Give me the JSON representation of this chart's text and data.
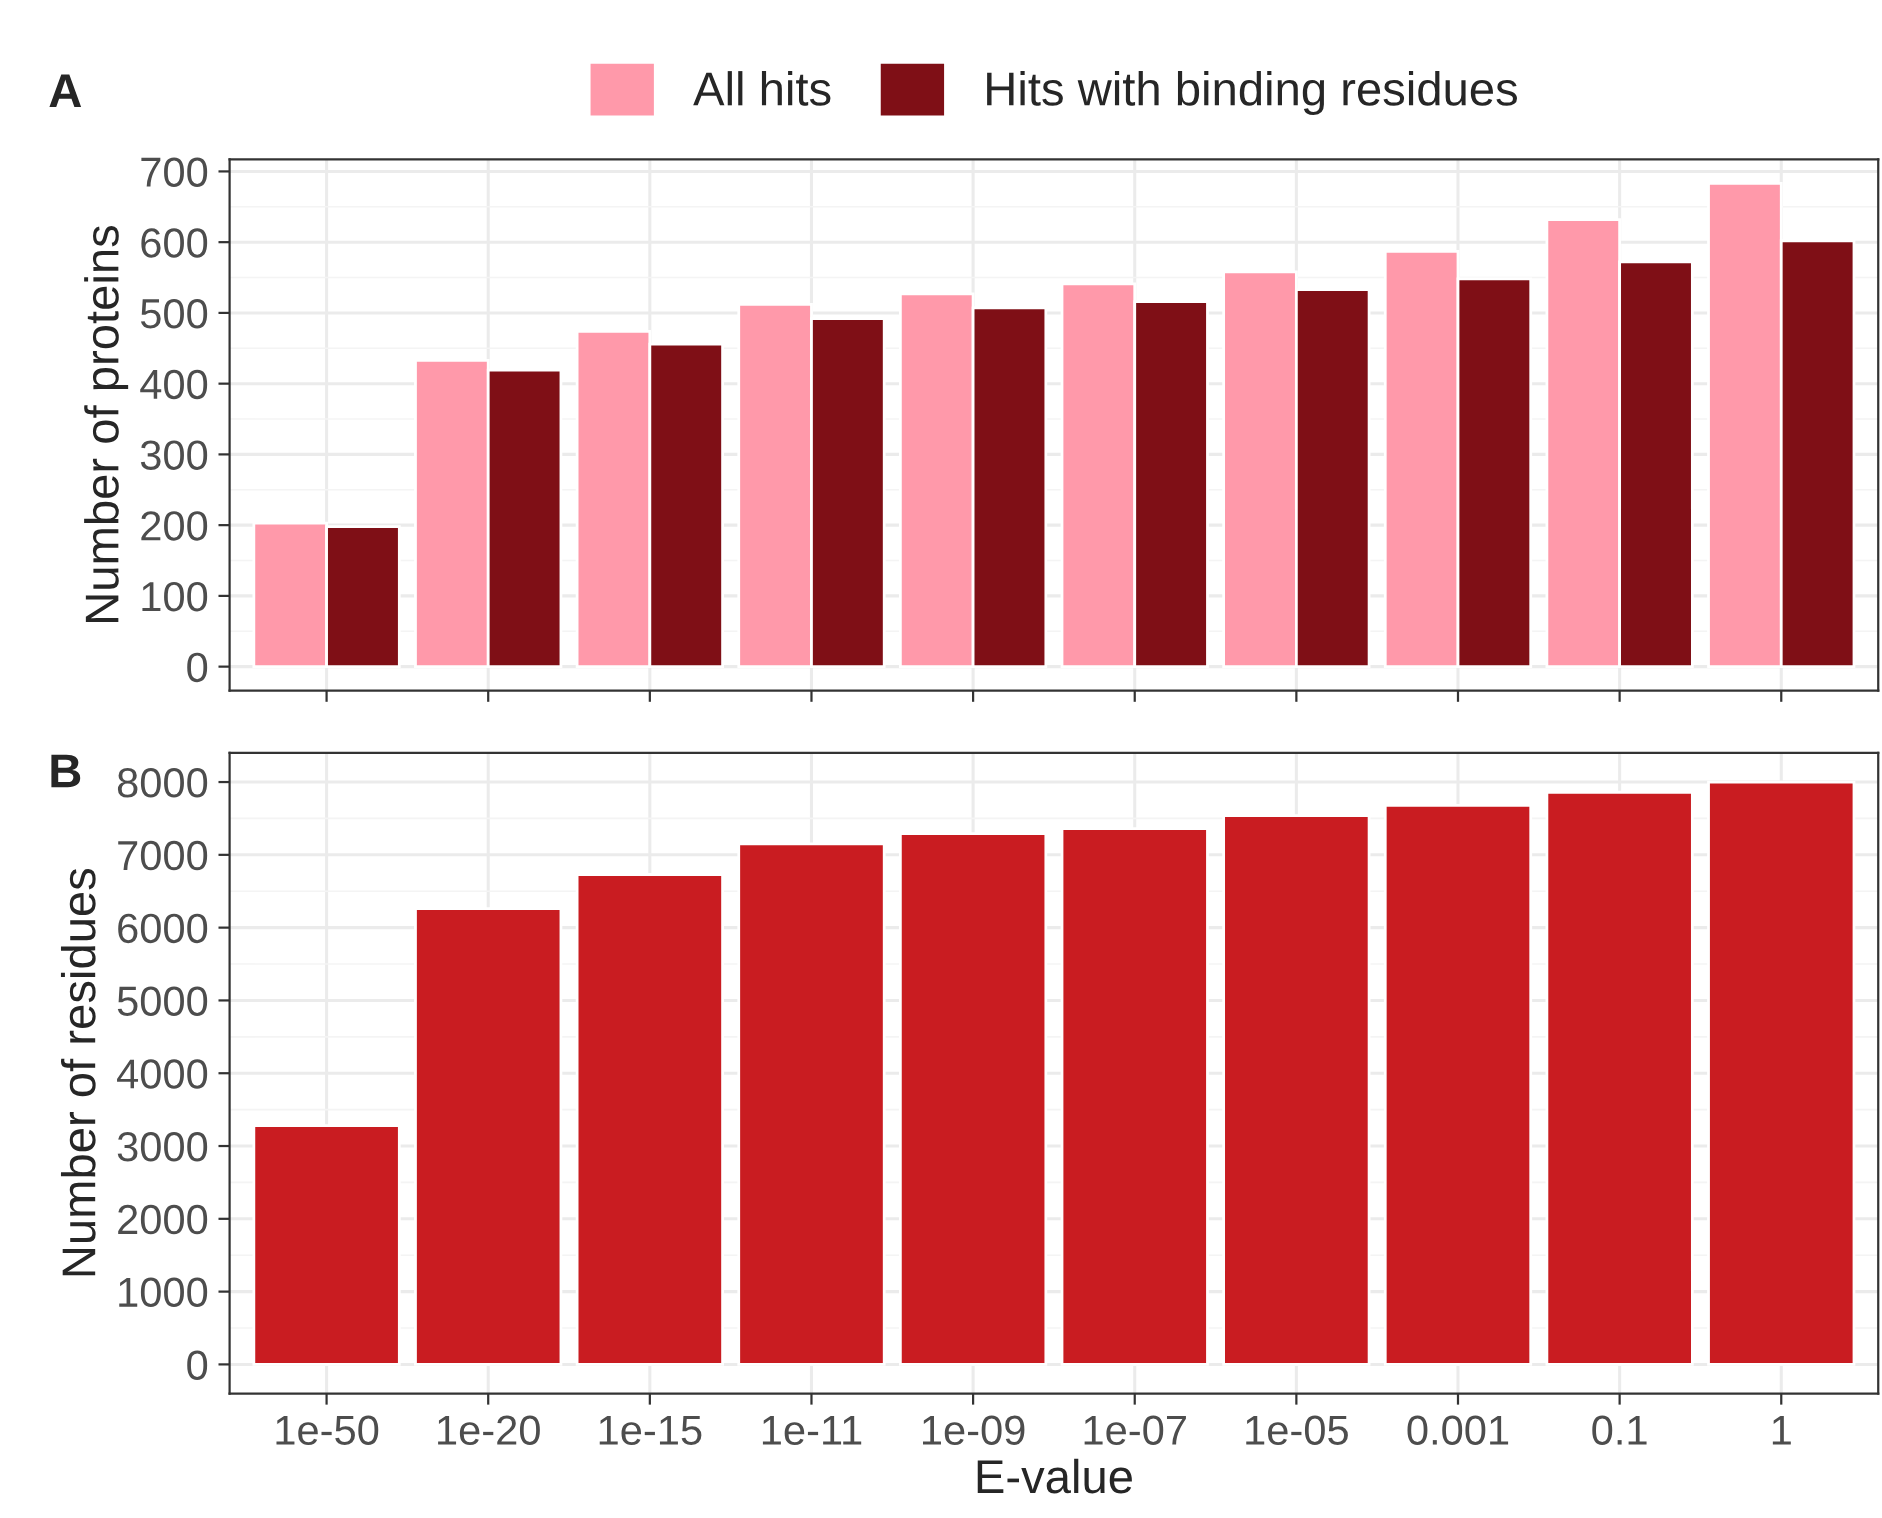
{
  "chart_data": [
    {
      "type": "bar",
      "annotations": [
        "A"
      ],
      "ylabel": "Number of proteins",
      "categories": [
        "1e-50",
        "1e-20",
        "1e-15",
        "1e-11",
        "1e-09",
        "1e-07",
        "1e-05",
        "0.001",
        "0.1",
        "1"
      ],
      "series": [
        {
          "name": "All hits",
          "color": "#ff99aa",
          "values": [
            203,
            433,
            474,
            512,
            527,
            541,
            558,
            587,
            632,
            683
          ]
        },
        {
          "name": "Hits with binding residues",
          "color": "#7f0f16",
          "values": [
            198,
            419,
            456,
            492,
            507,
            516,
            533,
            548,
            572,
            602
          ]
        }
      ],
      "ylim": [
        -34,
        717
      ],
      "yticks": [
        0,
        100,
        200,
        300,
        400,
        500,
        600,
        700
      ],
      "grid": true,
      "legend": "top",
      "tick_labels": "y"
    },
    {
      "type": "bar",
      "annotations": [
        "B"
      ],
      "ylabel": "Number of residues",
      "xlabel": "E-value",
      "categories": [
        "1e-50",
        "1e-20",
        "1e-15",
        "1e-11",
        "1e-09",
        "1e-07",
        "1e-05",
        "0.001",
        "0.1",
        "1"
      ],
      "series": [
        {
          "color": "#c91c21",
          "values": [
            3280,
            6260,
            6730,
            7150,
            7290,
            7360,
            7540,
            7680,
            7860,
            8000
          ]
        }
      ],
      "ylim": [
        -400,
        8400
      ],
      "yticks": [
        0,
        1000,
        2000,
        3000,
        4000,
        5000,
        6000,
        7000,
        8000
      ],
      "grid": true
    }
  ]
}
